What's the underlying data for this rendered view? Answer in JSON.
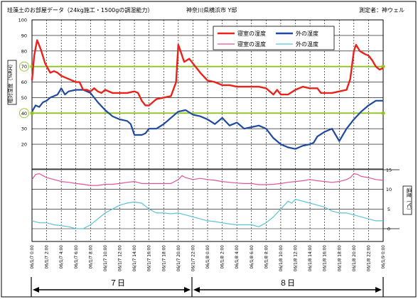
{
  "header": {
    "title": "珪藻土のお部屋データ（24kg施工・1500gの調湿能力）",
    "location": "神奈川県横浜市 Y邸",
    "measurer": "測定者：神ウェル"
  },
  "axis_labels": {
    "humidity": "相対湿度（%RH）",
    "temperature": "温度（℃）"
  },
  "duration_labels": {
    "day7": "７日",
    "day8": "８日"
  },
  "colors": {
    "bedroom_humidity": "#e8231c",
    "outdoor_humidity": "#1f4aa0",
    "bedroom_temperature": "#e0559b",
    "outdoor_temperature": "#5cc3d6",
    "reference_lines": "#8fc31f",
    "grid": "#000000"
  },
  "chart_data": {
    "type": "line",
    "x_unit": "hour",
    "x_range": [
      0,
      48
    ],
    "x_tick_labels": [
      "06/1/7 0:00",
      "06/1/7 2:00",
      "06/1/7 4:00",
      "06/1/7 6:00",
      "06/1/7 8:00",
      "06/1/7 10:00",
      "06/1/7 12:00",
      "06/1/7 14:00",
      "06/1/7 16:00",
      "06/1/7 18:00",
      "06/1/7 20:00",
      "06/1/7 22:00",
      "06/1/8 0:00",
      "06/1/8 2:00",
      "06/1/8 4:00",
      "06/1/8 6:00",
      "06/1/8 8:00",
      "06/1/8 10:00",
      "06/1/8 12:00",
      "06/1/8 14:00",
      "06/1/8 16:00",
      "06/1/8 18:00",
      "06/1/8 20:00",
      "06/1/8 22:00",
      "06/1/9 0:00"
    ],
    "humidity_axis": {
      "range": [
        10,
        100
      ],
      "ticks": [
        20,
        30,
        40,
        50,
        60,
        70,
        80,
        90,
        100
      ]
    },
    "temperature_axis": {
      "range": [
        0,
        15
      ],
      "ticks": [
        0,
        5,
        10,
        15
      ]
    },
    "reference_lines": [
      70,
      40
    ],
    "legend": [
      {
        "name": "寝室の湿度",
        "series": "bedroom_humidity"
      },
      {
        "name": "外の湿度",
        "series": "outdoor_humidity"
      },
      {
        "name": "寝室の温度",
        "series": "bedroom_temperature"
      },
      {
        "name": "外の温度",
        "series": "outdoor_temperature"
      }
    ],
    "series": {
      "bedroom_humidity": {
        "name": "寝室の湿度",
        "points": [
          [
            0,
            61
          ],
          [
            0.3,
            77
          ],
          [
            0.7,
            87
          ],
          [
            1.2,
            81
          ],
          [
            1.8,
            72
          ],
          [
            2.5,
            66
          ],
          [
            3,
            67
          ],
          [
            3.5,
            66
          ],
          [
            4,
            64
          ],
          [
            5,
            62
          ],
          [
            6,
            60
          ],
          [
            6.5,
            60
          ],
          [
            7,
            55
          ],
          [
            7.5,
            55
          ],
          [
            8,
            54
          ],
          [
            8.5,
            56
          ],
          [
            9,
            54
          ],
          [
            9.5,
            53
          ],
          [
            10,
            55
          ],
          [
            11,
            53
          ],
          [
            12,
            53
          ],
          [
            13,
            53
          ],
          [
            14,
            54
          ],
          [
            14.5,
            53
          ],
          [
            15,
            48
          ],
          [
            15.5,
            45
          ],
          [
            16,
            45
          ],
          [
            16.5,
            47
          ],
          [
            17,
            49
          ],
          [
            18,
            50
          ],
          [
            19,
            51
          ],
          [
            19.7,
            60
          ],
          [
            20,
            84
          ],
          [
            20.3,
            80
          ],
          [
            20.8,
            73
          ],
          [
            21.5,
            75
          ],
          [
            22,
            72
          ],
          [
            23,
            66
          ],
          [
            24,
            61
          ],
          [
            25,
            60
          ],
          [
            26,
            58
          ],
          [
            27,
            58
          ],
          [
            28,
            57
          ],
          [
            29,
            57
          ],
          [
            30,
            57
          ],
          [
            31,
            57
          ],
          [
            32,
            56
          ],
          [
            32.5,
            54
          ],
          [
            33,
            52
          ],
          [
            33.5,
            55
          ],
          [
            34,
            52
          ],
          [
            35,
            52
          ],
          [
            36,
            55
          ],
          [
            37,
            57
          ],
          [
            38,
            56
          ],
          [
            39,
            56
          ],
          [
            39.5,
            53
          ],
          [
            40,
            53
          ],
          [
            41,
            53
          ],
          [
            42,
            54
          ],
          [
            43,
            55
          ],
          [
            43.5,
            62
          ],
          [
            44,
            80
          ],
          [
            44.3,
            84
          ],
          [
            44.8,
            80
          ],
          [
            45.5,
            78
          ],
          [
            46,
            77
          ],
          [
            46.5,
            74
          ],
          [
            47,
            70
          ],
          [
            47.5,
            68
          ],
          [
            48,
            69
          ]
        ]
      },
      "outdoor_humidity": {
        "name": "外の湿度",
        "points": [
          [
            0,
            41
          ],
          [
            0.5,
            45
          ],
          [
            1,
            44
          ],
          [
            1.5,
            47
          ],
          [
            2,
            48
          ],
          [
            2.5,
            50
          ],
          [
            3,
            51
          ],
          [
            3.5,
            52
          ],
          [
            4,
            56
          ],
          [
            4.5,
            52
          ],
          [
            5,
            54
          ],
          [
            6,
            55
          ],
          [
            7,
            55
          ],
          [
            8,
            53
          ],
          [
            9,
            47
          ],
          [
            10,
            42
          ],
          [
            11,
            38
          ],
          [
            12,
            36
          ],
          [
            13,
            35
          ],
          [
            13.5,
            33
          ],
          [
            14,
            26
          ],
          [
            15,
            26
          ],
          [
            15.5,
            27
          ],
          [
            16,
            30
          ],
          [
            17,
            30
          ],
          [
            18,
            33
          ],
          [
            19,
            37
          ],
          [
            20,
            41
          ],
          [
            21,
            42
          ],
          [
            22,
            39
          ],
          [
            23,
            38
          ],
          [
            24,
            36
          ],
          [
            25,
            33
          ],
          [
            26,
            37
          ],
          [
            27,
            32
          ],
          [
            28,
            34
          ],
          [
            29,
            30
          ],
          [
            30,
            31
          ],
          [
            31,
            32
          ],
          [
            32,
            30
          ],
          [
            33,
            24
          ],
          [
            34,
            20
          ],
          [
            35,
            18
          ],
          [
            36,
            17
          ],
          [
            37,
            19
          ],
          [
            38,
            20
          ],
          [
            38.5,
            21
          ],
          [
            39,
            25
          ],
          [
            40,
            28
          ],
          [
            41,
            30
          ],
          [
            42,
            22
          ],
          [
            43,
            30
          ],
          [
            44,
            36
          ],
          [
            45,
            41
          ],
          [
            46,
            45
          ],
          [
            47,
            48
          ],
          [
            48,
            48
          ]
        ]
      },
      "bedroom_temperature": {
        "name": "寝室の温度",
        "points": [
          [
            0,
            12.5
          ],
          [
            0.5,
            13.8
          ],
          [
            1,
            14
          ],
          [
            1.5,
            13.5
          ],
          [
            2,
            13
          ],
          [
            3,
            12.5
          ],
          [
            4,
            12
          ],
          [
            5,
            11.8
          ],
          [
            6,
            11.5
          ],
          [
            7,
            11.3
          ],
          [
            8,
            11
          ],
          [
            9,
            11
          ],
          [
            10,
            11.3
          ],
          [
            11,
            11.3
          ],
          [
            12,
            11.5
          ],
          [
            13,
            11.8
          ],
          [
            14,
            12
          ],
          [
            15,
            11.5
          ],
          [
            16,
            11.5
          ],
          [
            17,
            11.5
          ],
          [
            18,
            11.5
          ],
          [
            19,
            11.5
          ],
          [
            20,
            12.5
          ],
          [
            20.5,
            13.5
          ],
          [
            21,
            13
          ],
          [
            22,
            12.5
          ],
          [
            23,
            12.8
          ],
          [
            24,
            12.5
          ],
          [
            25,
            12.3
          ],
          [
            26,
            12
          ],
          [
            27,
            11.8
          ],
          [
            28,
            11.6
          ],
          [
            29,
            11.5
          ],
          [
            30,
            11.5
          ],
          [
            31,
            11.2
          ],
          [
            32,
            11.2
          ],
          [
            33,
            11.3
          ],
          [
            34,
            11.5
          ],
          [
            35,
            11.8
          ],
          [
            36,
            12
          ],
          [
            37,
            12.2
          ],
          [
            38,
            12.5
          ],
          [
            39,
            12.2
          ],
          [
            40,
            12
          ],
          [
            41,
            11.8
          ],
          [
            42,
            12
          ],
          [
            43,
            12.5
          ],
          [
            43.5,
            13
          ],
          [
            44,
            14
          ],
          [
            44.5,
            13.8
          ],
          [
            45,
            13.3
          ],
          [
            46,
            13
          ],
          [
            47,
            12.5
          ],
          [
            48,
            12.3
          ]
        ]
      },
      "outdoor_temperature": {
        "name": "外の温度",
        "points": [
          [
            0,
            2
          ],
          [
            1,
            1.5
          ],
          [
            2,
            1.5
          ],
          [
            3,
            1
          ],
          [
            4,
            0.8
          ],
          [
            5,
            0.5
          ],
          [
            6,
            0
          ],
          [
            7,
            0
          ],
          [
            8,
            1
          ],
          [
            9,
            2.5
          ],
          [
            10,
            4
          ],
          [
            11,
            5
          ],
          [
            12,
            6
          ],
          [
            13,
            6.5
          ],
          [
            14,
            6.8
          ],
          [
            15,
            6.5
          ],
          [
            16,
            5
          ],
          [
            17,
            4
          ],
          [
            18,
            4
          ],
          [
            19,
            3.8
          ],
          [
            20,
            4
          ],
          [
            21,
            3.5
          ],
          [
            22,
            3
          ],
          [
            23,
            2.5
          ],
          [
            24,
            2
          ],
          [
            25,
            1.8
          ],
          [
            26,
            1.5
          ],
          [
            27,
            1.2
          ],
          [
            28,
            1
          ],
          [
            29,
            1
          ],
          [
            30,
            1
          ],
          [
            31,
            0.5
          ],
          [
            32,
            1.5
          ],
          [
            33,
            3
          ],
          [
            34,
            5
          ],
          [
            35,
            7
          ],
          [
            35.5,
            6.5
          ],
          [
            36,
            7.5
          ],
          [
            37,
            7
          ],
          [
            38,
            6.5
          ],
          [
            39,
            6
          ],
          [
            40,
            5.5
          ],
          [
            41,
            4.5
          ],
          [
            42,
            4
          ],
          [
            43,
            4
          ],
          [
            44,
            3.5
          ],
          [
            45,
            3
          ],
          [
            46,
            2.5
          ],
          [
            47,
            2
          ],
          [
            48,
            2
          ]
        ]
      }
    }
  }
}
